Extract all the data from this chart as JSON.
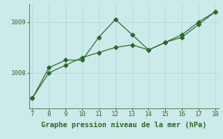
{
  "x": [
    7,
    8,
    9,
    10,
    11,
    12,
    13,
    14,
    15,
    16,
    17,
    18
  ],
  "line_wavy": [
    1007.5,
    1008.1,
    1008.25,
    1008.25,
    1008.7,
    1009.05,
    1008.75,
    1008.45,
    1008.6,
    1008.7,
    1008.95,
    1009.2
  ],
  "line_straight": [
    1007.5,
    1008.0,
    1008.15,
    1008.3,
    1008.4,
    1008.5,
    1008.55,
    1008.45,
    1008.6,
    1008.75,
    1009.0,
    1009.2
  ],
  "line_color": "#2d6a2d",
  "background_color": "#cceaea",
  "grid_color": "#aed4d4",
  "xlabel": "Graphe pression niveau de la mer (hPa)",
  "ytick_labels": [
    "1008",
    "1009"
  ],
  "ytick_vals": [
    1008,
    1009
  ],
  "ylim": [
    1007.3,
    1009.35
  ],
  "xlim": [
    6.8,
    18.2
  ],
  "xlabel_fontsize": 7.5,
  "tick_fontsize": 6.5,
  "marker_size": 3.0,
  "linewidth": 0.9
}
